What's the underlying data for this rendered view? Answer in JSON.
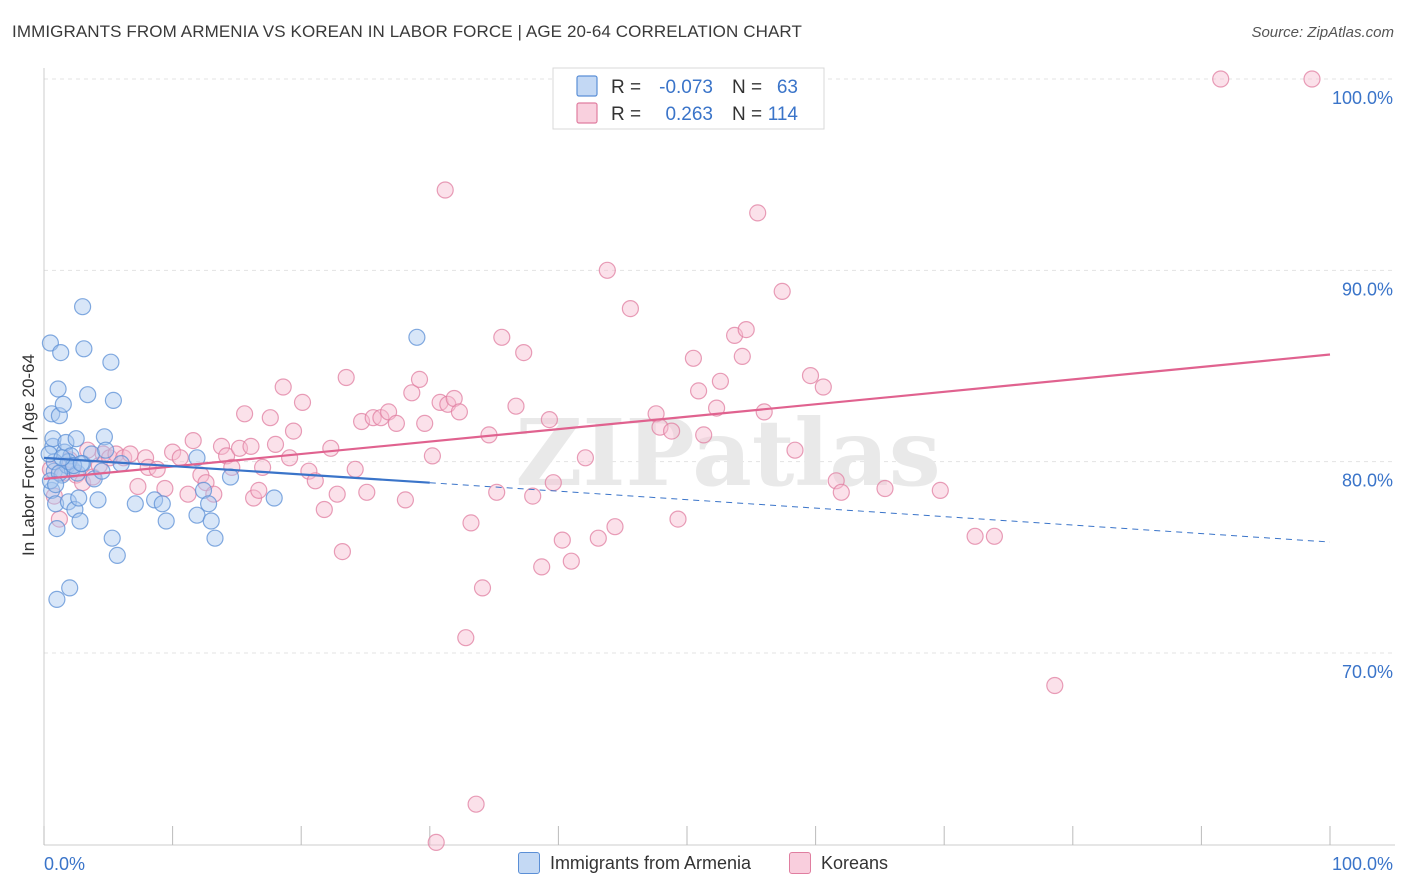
{
  "title": "IMMIGRANTS FROM ARMENIA VS KOREAN IN LABOR FORCE | AGE 20-64 CORRELATION CHART",
  "source": "Source: ZipAtlas.com",
  "watermark": "ZIPatlas",
  "colors": {
    "armenia_fill": "#a9c8ef",
    "armenia_stroke": "#5b8fd6",
    "armenia_line": "#3a74c9",
    "korean_fill": "#f6bcd0",
    "korean_stroke": "#e07ea0",
    "korean_line": "#e0628f",
    "axis_label": "#3a74c9",
    "grid": "#e3e3e3"
  },
  "stats_legend": {
    "rows": [
      {
        "r_label": "R =",
        "r_value": "-0.073",
        "n_label": "N =",
        "n_value": "63"
      },
      {
        "r_label": "R =",
        "r_value": "0.263",
        "n_label": "N =",
        "n_value": "114"
      }
    ]
  },
  "chart_data": {
    "type": "scatter",
    "title": "IMMIGRANTS FROM ARMENIA VS KOREAN IN LABOR FORCE | AGE 20-64 CORRELATION CHART",
    "xlabel": "",
    "ylabel": "In Labor Force | Age 20-64",
    "xlim": [
      0,
      100
    ],
    "ylim": [
      60,
      101
    ],
    "x_tick_labels": [
      "0.0%",
      "100.0%"
    ],
    "y_ticks": [
      100,
      90,
      80,
      70
    ],
    "y_tick_labels": [
      "100.0%",
      "90.0%",
      "80.0%",
      "70.0%"
    ],
    "grid": true,
    "legend_position": "bottom",
    "series": [
      {
        "name": "Immigrants from Armenia",
        "r": -0.073,
        "n": 63,
        "trend": {
          "x0": 0,
          "y0": 80.2,
          "x1": 30,
          "y1": 78.9,
          "dashed_to_x": 100,
          "dashed_to_y": 75.8
        },
        "points": [
          [
            0.5,
            86.2
          ],
          [
            0.6,
            82.5
          ],
          [
            0.7,
            80.8
          ],
          [
            0.8,
            79.5
          ],
          [
            0.6,
            78.5
          ],
          [
            0.9,
            77.8
          ],
          [
            1.0,
            76.5
          ],
          [
            0.5,
            79.0
          ],
          [
            0.7,
            81.2
          ],
          [
            1.1,
            83.8
          ],
          [
            1.2,
            82.4
          ],
          [
            1.3,
            85.7
          ],
          [
            1.5,
            83.0
          ],
          [
            1.4,
            79.3
          ],
          [
            1.6,
            80.5
          ],
          [
            1.8,
            79.8
          ],
          [
            1.7,
            81.0
          ],
          [
            1.9,
            77.9
          ],
          [
            2.0,
            73.4
          ],
          [
            1.0,
            72.8
          ],
          [
            2.1,
            80.3
          ],
          [
            2.2,
            79.6
          ],
          [
            2.4,
            77.5
          ],
          [
            2.5,
            81.2
          ],
          [
            2.6,
            79.4
          ],
          [
            2.7,
            78.1
          ],
          [
            2.8,
            76.9
          ],
          [
            3.0,
            79.9
          ],
          [
            3.1,
            85.9
          ],
          [
            3.0,
            88.1
          ],
          [
            3.4,
            83.5
          ],
          [
            3.7,
            80.4
          ],
          [
            3.9,
            79.1
          ],
          [
            4.2,
            78.0
          ],
          [
            4.5,
            79.5
          ],
          [
            4.7,
            81.3
          ],
          [
            4.8,
            80.6
          ],
          [
            5.2,
            85.2
          ],
          [
            5.4,
            83.2
          ],
          [
            5.3,
            76.0
          ],
          [
            5.7,
            75.1
          ],
          [
            6.0,
            79.9
          ],
          [
            7.1,
            77.8
          ],
          [
            8.6,
            78.0
          ],
          [
            9.2,
            77.8
          ],
          [
            9.5,
            76.9
          ],
          [
            11.9,
            80.2
          ],
          [
            11.9,
            77.2
          ],
          [
            12.4,
            78.5
          ],
          [
            12.8,
            77.8
          ],
          [
            13.0,
            76.9
          ],
          [
            13.3,
            76.0
          ],
          [
            14.5,
            79.2
          ],
          [
            17.9,
            78.1
          ],
          [
            29.0,
            86.5
          ],
          [
            0.8,
            80.0
          ],
          [
            1.2,
            79.4
          ],
          [
            1.9,
            80.0
          ],
          [
            2.3,
            79.8
          ],
          [
            0.4,
            80.4
          ],
          [
            0.9,
            78.8
          ],
          [
            1.4,
            80.2
          ],
          [
            2.9,
            79.9
          ]
        ]
      },
      {
        "name": "Koreans",
        "r": 0.263,
        "n": 114,
        "trend": {
          "x0": 0,
          "y0": 79.1,
          "x1": 100,
          "y1": 85.6
        },
        "points": [
          [
            0.5,
            79.6
          ],
          [
            0.8,
            78.2
          ],
          [
            1.2,
            77.0
          ],
          [
            1.5,
            79.4
          ],
          [
            2.0,
            80.1
          ],
          [
            2.5,
            79.3
          ],
          [
            3.0,
            78.9
          ],
          [
            3.4,
            80.6
          ],
          [
            3.8,
            79.2
          ],
          [
            4.3,
            79.8
          ],
          [
            4.6,
            80.4
          ],
          [
            5.1,
            80.2
          ],
          [
            5.6,
            80.4
          ],
          [
            6.2,
            80.2
          ],
          [
            6.7,
            80.4
          ],
          [
            7.3,
            78.7
          ],
          [
            7.9,
            80.2
          ],
          [
            8.1,
            79.7
          ],
          [
            8.8,
            79.6
          ],
          [
            9.4,
            78.6
          ],
          [
            10.0,
            80.5
          ],
          [
            10.6,
            80.2
          ],
          [
            11.2,
            78.3
          ],
          [
            11.6,
            81.1
          ],
          [
            12.2,
            79.3
          ],
          [
            12.6,
            78.9
          ],
          [
            13.2,
            78.3
          ],
          [
            13.8,
            80.8
          ],
          [
            14.2,
            80.3
          ],
          [
            14.6,
            79.7
          ],
          [
            15.2,
            80.7
          ],
          [
            15.6,
            82.5
          ],
          [
            16.1,
            80.8
          ],
          [
            16.3,
            78.1
          ],
          [
            16.7,
            78.5
          ],
          [
            17.0,
            79.7
          ],
          [
            17.6,
            82.3
          ],
          [
            18.0,
            80.9
          ],
          [
            18.6,
            83.9
          ],
          [
            19.1,
            80.2
          ],
          [
            19.4,
            81.6
          ],
          [
            20.1,
            83.1
          ],
          [
            20.6,
            79.5
          ],
          [
            21.1,
            79.0
          ],
          [
            21.8,
            77.5
          ],
          [
            22.3,
            80.7
          ],
          [
            22.8,
            78.3
          ],
          [
            23.2,
            75.3
          ],
          [
            23.5,
            84.4
          ],
          [
            24.2,
            79.6
          ],
          [
            24.7,
            82.1
          ],
          [
            25.1,
            78.4
          ],
          [
            25.6,
            82.3
          ],
          [
            26.2,
            82.3
          ],
          [
            26.8,
            82.6
          ],
          [
            27.4,
            82.0
          ],
          [
            28.1,
            78.0
          ],
          [
            28.6,
            83.6
          ],
          [
            29.2,
            84.3
          ],
          [
            29.6,
            82.0
          ],
          [
            30.2,
            80.3
          ],
          [
            30.8,
            83.1
          ],
          [
            31.4,
            83.0
          ],
          [
            31.9,
            83.3
          ],
          [
            32.3,
            82.6
          ],
          [
            32.8,
            70.8
          ],
          [
            33.2,
            76.8
          ],
          [
            34.1,
            73.4
          ],
          [
            34.6,
            81.4
          ],
          [
            35.2,
            78.4
          ],
          [
            35.6,
            86.5
          ],
          [
            36.7,
            82.9
          ],
          [
            37.3,
            85.7
          ],
          [
            38.0,
            78.2
          ],
          [
            38.7,
            74.5
          ],
          [
            39.3,
            82.2
          ],
          [
            39.6,
            78.9
          ],
          [
            40.3,
            75.9
          ],
          [
            41.0,
            74.8
          ],
          [
            42.1,
            80.2
          ],
          [
            43.1,
            76.0
          ],
          [
            43.8,
            90.0
          ],
          [
            44.4,
            76.6
          ],
          [
            45.6,
            88.0
          ],
          [
            47.6,
            82.5
          ],
          [
            47.9,
            81.8
          ],
          [
            48.8,
            81.6
          ],
          [
            49.3,
            77.0
          ],
          [
            50.5,
            85.4
          ],
          [
            50.9,
            83.7
          ],
          [
            51.3,
            81.4
          ],
          [
            52.3,
            82.8
          ],
          [
            52.6,
            84.2
          ],
          [
            53.7,
            86.6
          ],
          [
            54.3,
            85.5
          ],
          [
            54.6,
            86.9
          ],
          [
            55.5,
            93.0
          ],
          [
            56.0,
            82.6
          ],
          [
            57.4,
            88.9
          ],
          [
            58.4,
            80.6
          ],
          [
            59.6,
            84.5
          ],
          [
            60.6,
            83.9
          ],
          [
            61.6,
            79.0
          ],
          [
            62.0,
            78.4
          ],
          [
            65.4,
            78.6
          ],
          [
            69.7,
            78.5
          ],
          [
            72.4,
            76.1
          ],
          [
            73.9,
            76.1
          ],
          [
            78.6,
            68.3
          ],
          [
            30.5,
            60.1
          ],
          [
            33.6,
            62.1
          ],
          [
            31.2,
            94.2
          ],
          [
            91.5,
            100.0
          ],
          [
            98.6,
            100.0
          ]
        ]
      }
    ]
  },
  "legend_bottom": [
    {
      "label": "Immigrants from Armenia"
    },
    {
      "label": "Koreans"
    }
  ]
}
